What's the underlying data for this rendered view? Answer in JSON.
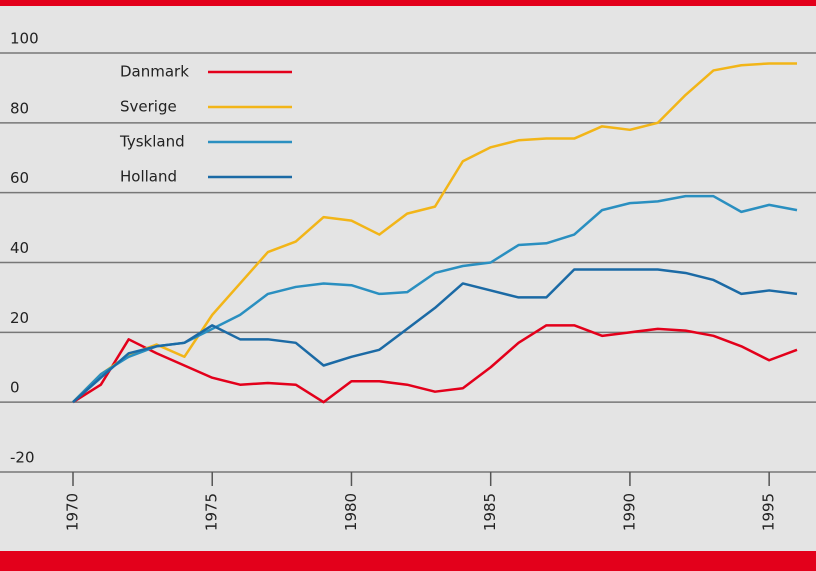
{
  "chart_data": {
    "type": "line",
    "x": [
      1970,
      1971,
      1972,
      1973,
      1974,
      1975,
      1976,
      1977,
      1978,
      1979,
      1980,
      1981,
      1982,
      1983,
      1984,
      1985,
      1986,
      1987,
      1988,
      1989,
      1990,
      1991,
      1992,
      1993,
      1994,
      1995,
      1996
    ],
    "series": [
      {
        "name": "Danmark",
        "color": "#e3001b",
        "values": [
          0,
          5,
          18,
          14,
          10.5,
          7,
          5,
          5.5,
          5,
          0,
          6,
          6,
          5,
          3,
          4,
          10,
          17,
          22,
          22,
          19,
          20,
          21,
          20.5,
          19,
          16,
          12,
          15
        ]
      },
      {
        "name": "Sverige",
        "color": "#f2b518",
        "values": [
          0,
          8,
          13.5,
          16.5,
          13,
          25,
          34,
          43,
          46,
          53,
          52,
          48,
          54,
          56,
          69,
          73,
          75,
          75.5,
          75.5,
          79,
          78,
          80,
          88,
          95,
          96.5,
          97,
          97
        ]
      },
      {
        "name": "Tyskland",
        "color": "#2a8fc0",
        "values": [
          0,
          8,
          13,
          16,
          17,
          21,
          25,
          31,
          33,
          34,
          33.5,
          31,
          31.5,
          37,
          39,
          40,
          45,
          45.5,
          48,
          55,
          57,
          57.5,
          59,
          59,
          54.5,
          56.5,
          55
        ]
      },
      {
        "name": "Holland",
        "color": "#1b6aa5",
        "values": [
          0,
          7,
          14,
          16,
          17,
          22,
          18,
          18,
          17,
          10.5,
          13,
          15,
          21,
          27,
          34,
          32,
          30,
          30,
          38,
          38,
          38,
          38,
          37,
          35,
          31,
          32,
          31
        ]
      }
    ],
    "xlim": [
      1970,
      1996
    ],
    "xticks": [
      1970,
      1975,
      1980,
      1985,
      1990,
      1995
    ],
    "ylim": [
      -20,
      100
    ],
    "yticks": [
      -20,
      0,
      20,
      40,
      60,
      80,
      100
    ],
    "grid": true
  }
}
